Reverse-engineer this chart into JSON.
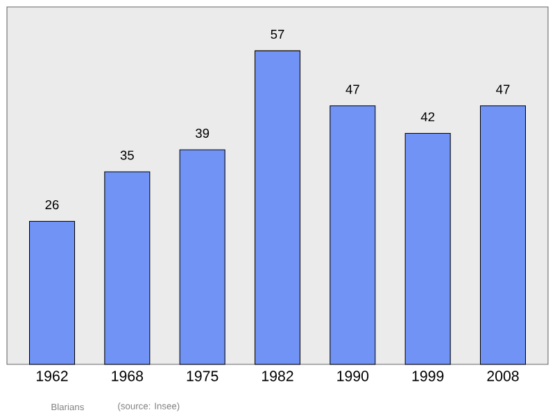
{
  "chart_data": {
    "type": "bar",
    "categories": [
      "1962",
      "1968",
      "1975",
      "1982",
      "1990",
      "1999",
      "2008"
    ],
    "values": [
      26,
      35,
      39,
      57,
      47,
      42,
      47
    ],
    "color": "#7093f5",
    "data_labels": true,
    "annotations": [
      "Blarians",
      "(source: Insee)"
    ]
  }
}
